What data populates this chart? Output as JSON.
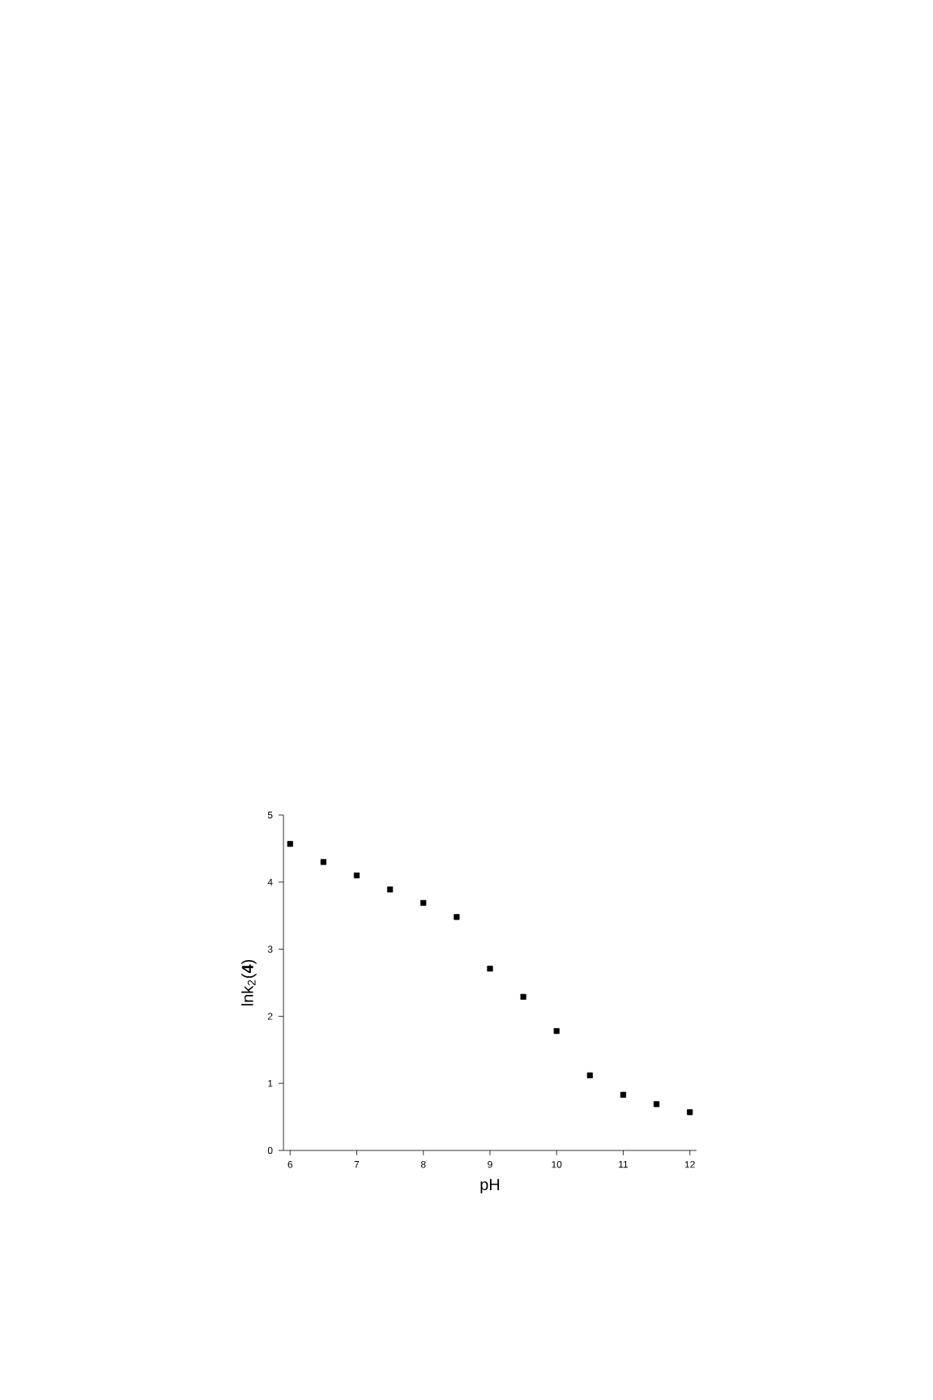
{
  "chart_data": {
    "type": "scatter",
    "xlabel": "pH",
    "ylabel": "lnk$_{2}$(**4**)",
    "x": [
      6,
      6.5,
      7,
      7.5,
      8,
      8.5,
      9,
      9.5,
      10,
      10.5,
      11,
      11.5,
      12
    ],
    "series": [
      {
        "color": "#000000",
        "values": [
          4.57,
          4.3,
          4.1,
          3.89,
          3.69,
          3.48,
          2.71,
          2.29,
          1.78,
          1.12,
          0.83,
          0.69,
          0.57
        ]
      }
    ],
    "xlim": [
      5.9,
      12.1
    ],
    "ylim": [
      0,
      5
    ],
    "xticks": [
      6,
      7,
      8,
      9,
      10,
      11,
      12
    ],
    "yticks": [
      0,
      1,
      2,
      3,
      4,
      5
    ],
    "marker": "square",
    "grid": false
  }
}
